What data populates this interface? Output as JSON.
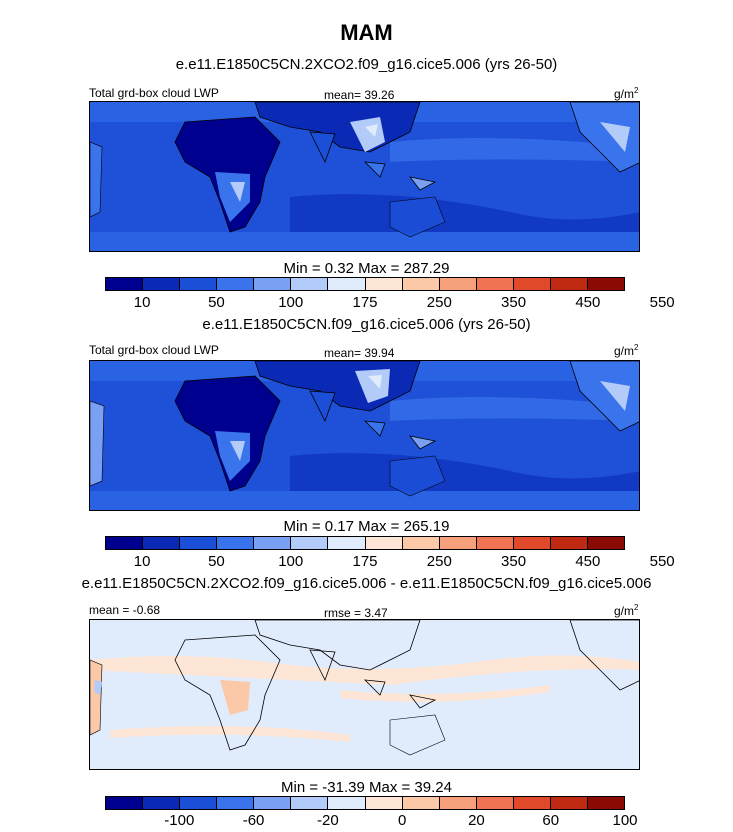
{
  "title": "MAM",
  "panels": [
    {
      "case": "e.e11.E1850C5CN.2XCO2.f09_g16.cice5.006 (yrs 26-50)",
      "variable": "Total grd-box cloud LWP",
      "stat": "mean=  39.26",
      "units": "g/m",
      "units_sup": "2",
      "minmax": "Min =   0.32 Max = 287.29",
      "ticks": [
        "10",
        "50",
        "100",
        "175",
        "250",
        "350",
        "450",
        "550"
      ],
      "colors": [
        "#00008e",
        "#0a2ab5",
        "#1b4fd8",
        "#3a74ec",
        "#7aa0f3",
        "#b3cbf8",
        "#e0ebfc",
        "#fde6d6",
        "#fbc8a8",
        "#f7a07c",
        "#f07454",
        "#e04a2a",
        "#c12a12",
        "#8a0a04"
      ]
    },
    {
      "case": "e.e11.E1850C5CN.f09_g16.cice5.006 (yrs 26-50)",
      "variable": "Total grd-box cloud LWP",
      "stat": "mean=  39.94",
      "units": "g/m",
      "units_sup": "2",
      "minmax": "Min =   0.17 Max = 265.19",
      "ticks": [
        "10",
        "50",
        "100",
        "175",
        "250",
        "350",
        "450",
        "550"
      ],
      "colors": [
        "#00008e",
        "#0a2ab5",
        "#1b4fd8",
        "#3a74ec",
        "#7aa0f3",
        "#b3cbf8",
        "#e0ebfc",
        "#fde6d6",
        "#fbc8a8",
        "#f7a07c",
        "#f07454",
        "#e04a2a",
        "#c12a12",
        "#8a0a04"
      ]
    },
    {
      "case": "e.e11.E1850C5CN.2XCO2.f09_g16.cice5.006 - e.e11.E1850C5CN.f09_g16.cice5.006",
      "variable": "mean =  -0.68",
      "stat": "rmse =   3.47",
      "units": "g/m",
      "units_sup": "2",
      "minmax": "Min = -31.39 Max =  39.24",
      "ticks": [
        "-100",
        "-60",
        "-20",
        "0",
        "20",
        "60",
        "100"
      ],
      "colors": [
        "#00008e",
        "#0a2ab5",
        "#1b4fd8",
        "#3a74ec",
        "#7aa0f3",
        "#b3cbf8",
        "#e0ebfc",
        "#fde6d6",
        "#fbc8a8",
        "#f7a07c",
        "#f07454",
        "#e04a2a",
        "#c12a12",
        "#8a0a04"
      ]
    }
  ]
}
